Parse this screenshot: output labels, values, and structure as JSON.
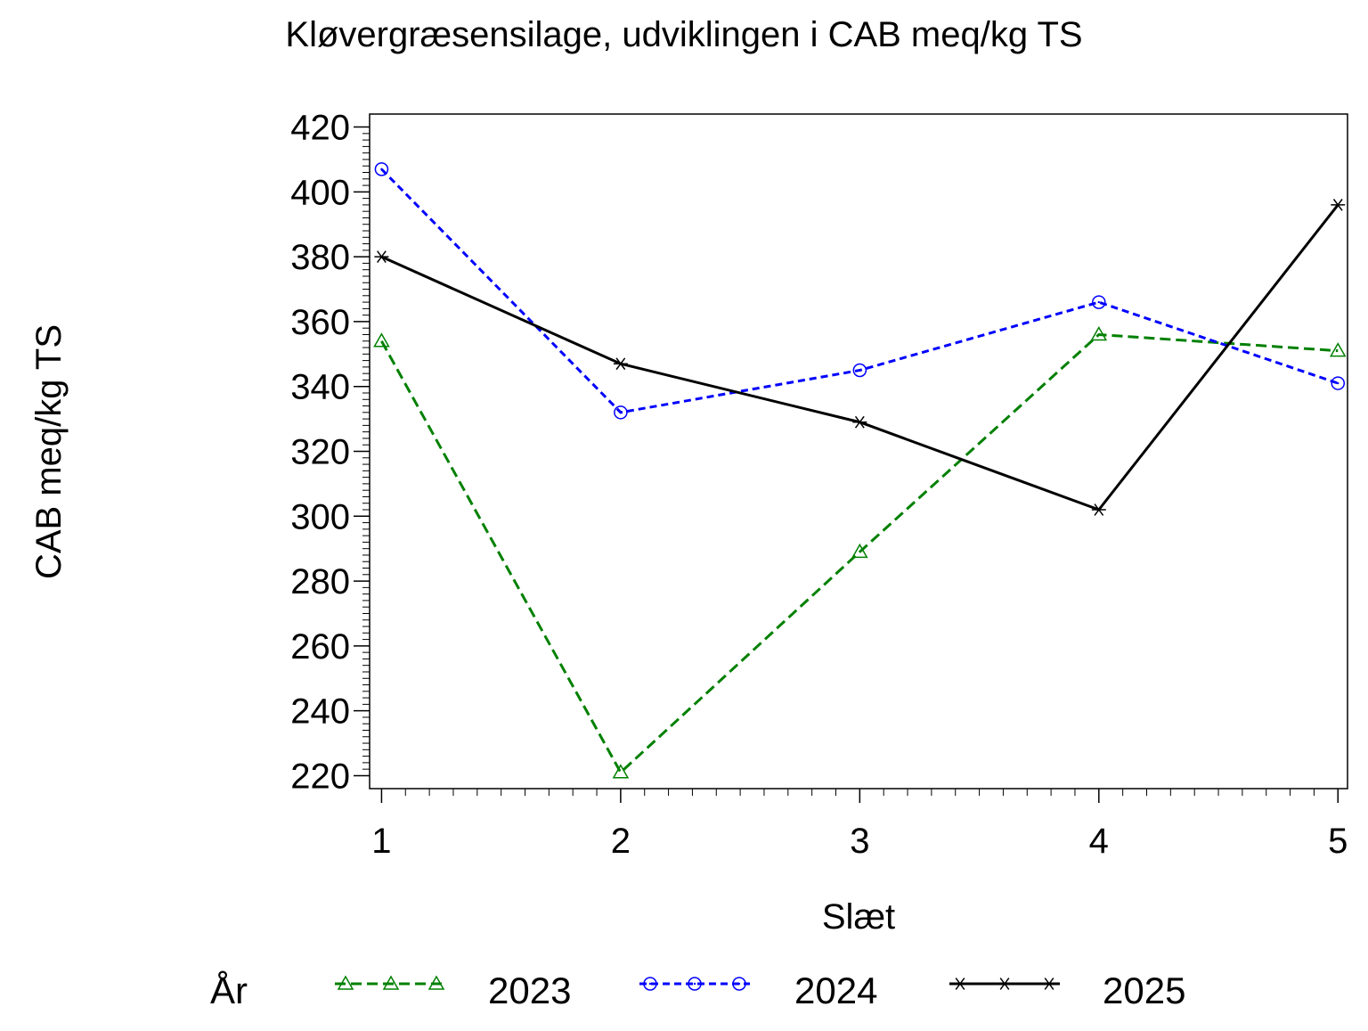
{
  "chart_data": {
    "type": "line",
    "title": "Kløvergræsensilage,  udviklingen  i  CAB  meq/kg  TS",
    "xlabel": "Slæt",
    "ylabel": "CAB meq/kg TS",
    "x": [
      1,
      2,
      3,
      4,
      5
    ],
    "x_ticks": [
      "1",
      "2",
      "3",
      "4",
      "5"
    ],
    "xlim": [
      0.95,
      5.04
    ],
    "ylim": [
      216,
      424
    ],
    "y_ticks": [
      220,
      240,
      260,
      280,
      300,
      320,
      340,
      360,
      380,
      400,
      420
    ],
    "grid": false,
    "legend": {
      "title": "År",
      "placement": "bottom"
    },
    "series": [
      {
        "name": "2023",
        "values": [
          354,
          221,
          289,
          356,
          351
        ],
        "color": "#008000",
        "dash": "dashed",
        "marker": "triangle"
      },
      {
        "name": "2024",
        "values": [
          407,
          332,
          345,
          366,
          341
        ],
        "color": "#0000ff",
        "dash": "dotted",
        "marker": "circle"
      },
      {
        "name": "2025",
        "values": [
          380,
          347,
          329,
          302,
          396
        ],
        "color": "#000000",
        "dash": "solid",
        "marker": "star"
      }
    ]
  }
}
